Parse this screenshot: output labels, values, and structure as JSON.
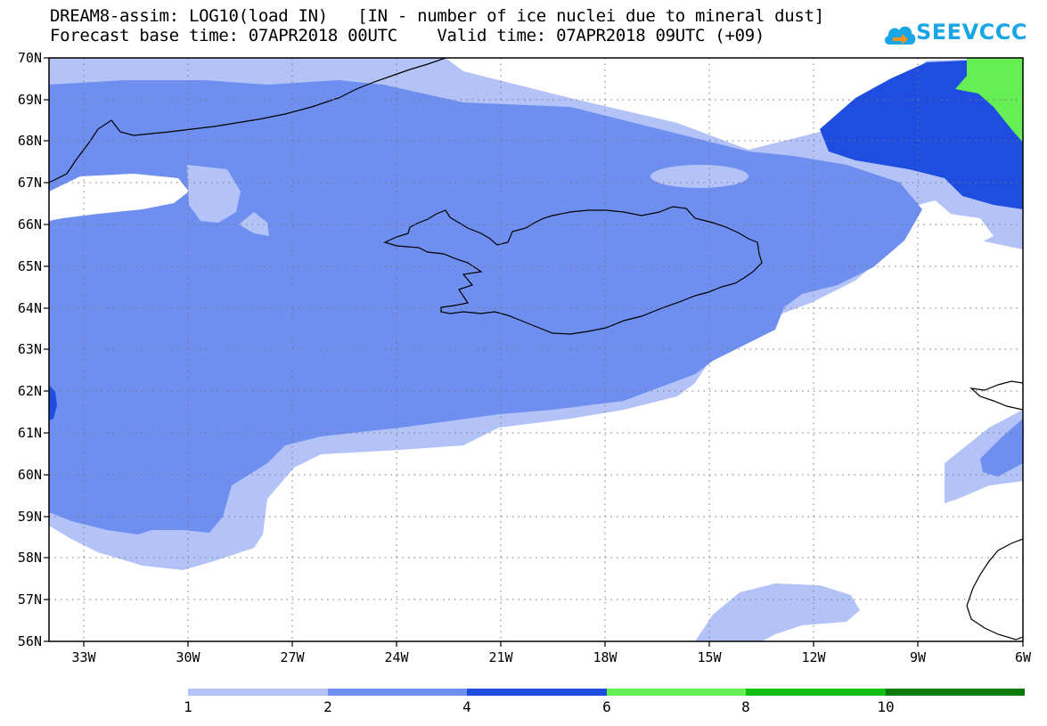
{
  "header": {
    "title_line1": "DREAM8-assim: LOG10(load IN)   [IN - number of ice nuclei due to mineral dust]",
    "title_line2": "Forecast base time: 07APR2018 00UTC    Valid time: 07APR2018 09UTC (+09)"
  },
  "logo": {
    "text": "SEEVCCC",
    "icon": "cloud-logo-icon",
    "color": "#1aa6e6"
  },
  "axes": {
    "lat_labels": [
      "70N",
      "69N",
      "68N",
      "67N",
      "66N",
      "65N",
      "64N",
      "63N",
      "62N",
      "61N",
      "60N",
      "59N",
      "58N",
      "57N",
      "56N"
    ],
    "lon_labels": [
      "33W",
      "30W",
      "27W",
      "24W",
      "21W",
      "18W",
      "15W",
      "12W",
      "9W",
      "6W"
    ]
  },
  "colorbar": {
    "labels": [
      "1",
      "2",
      "4",
      "6",
      "8",
      "10"
    ],
    "colors": [
      "#b3c3f7",
      "#6e8ef0",
      "#1f4de0",
      "#66ee55",
      "#11c011",
      "#0a7a0a"
    ]
  },
  "fill_colors": {
    "level1": "#b3c3f7",
    "level2": "#6e8ef0",
    "level3": "#1f4de0",
    "level4": "#66ee55"
  }
}
